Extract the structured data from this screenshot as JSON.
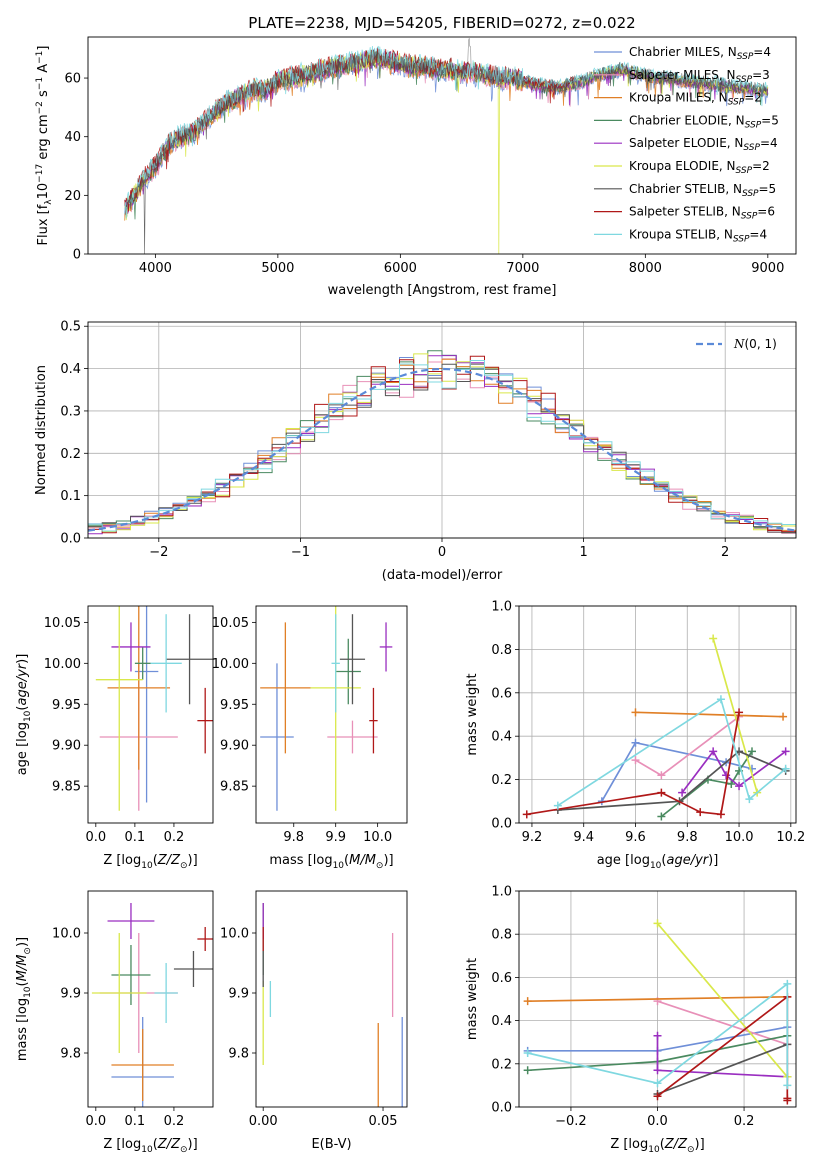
{
  "title": "PLATE=2238, MJD=54205, FIBERID=0272, z=0.022",
  "models": [
    {
      "name": "Chabrier MILES",
      "nssp": "4",
      "color": "#6f8fd8"
    },
    {
      "name": "Salpeter MILES",
      "nssp": "3",
      "color": "#e890b8"
    },
    {
      "name": "Kroupa MILES",
      "nssp": "2",
      "color": "#e07f26"
    },
    {
      "name": "Chabrier ELODIE",
      "nssp": "5",
      "color": "#4a8a60"
    },
    {
      "name": "Salpeter ELODIE",
      "nssp": "4",
      "color": "#9a2ec0"
    },
    {
      "name": "Kroupa ELODIE",
      "nssp": "2",
      "color": "#d9e84a"
    },
    {
      "name": "Chabrier STELIB",
      "nssp": "5",
      "color": "#555555"
    },
    {
      "name": "Salpeter STELIB",
      "nssp": "6",
      "color": "#b01818"
    },
    {
      "name": "Kroupa STELIB",
      "nssp": "4",
      "color": "#7fd8e0"
    }
  ],
  "nssp_prefix": "N",
  "nssp_sub": "SSP",
  "chart_data": [
    {
      "type": "line",
      "title": "PLATE=2238, MJD=54205, FIBERID=0272, z=0.022",
      "xlabel": "wavelength [Angstrom, rest frame]",
      "ylabel": "Flux [f_λ 10^-17 erg cm^-2 s^-1 A^-1]",
      "xlim": [
        3450,
        9230
      ],
      "ylim": [
        0,
        74
      ],
      "xticks": [
        4000,
        5000,
        6000,
        7000,
        8000,
        9000
      ],
      "yticks": [
        0,
        20,
        40,
        60
      ],
      "spectrum_envelope": {
        "x": [
          3750,
          3800,
          3900,
          4000,
          4100,
          4200,
          4300,
          4400,
          4500,
          4600,
          4700,
          4800,
          4900,
          5000,
          5100,
          5200,
          5300,
          5400,
          5500,
          5600,
          5700,
          5800,
          5900,
          6000,
          6100,
          6200,
          6300,
          6400,
          6500,
          6600,
          6700,
          6800,
          6900,
          7000,
          7100,
          7200,
          7300,
          7400,
          7500,
          7600,
          7700,
          7800,
          7900,
          8000,
          8100,
          8200,
          8300,
          8400,
          8500,
          8600,
          8700,
          8800,
          8900,
          9000
        ],
        "y": [
          15,
          18,
          25,
          30,
          37,
          40,
          41,
          45,
          49,
          52,
          54,
          56,
          56,
          59,
          60,
          61,
          62,
          63,
          64,
          65,
          66,
          67,
          66,
          65,
          64,
          64,
          63,
          63,
          62,
          62,
          61,
          60,
          60,
          59,
          58,
          57,
          57,
          58,
          59,
          61,
          62,
          63,
          62,
          61,
          60,
          60,
          59,
          59,
          58,
          58,
          57,
          57,
          56,
          56
        ]
      },
      "legend": "upper right"
    },
    {
      "type": "bar",
      "subtype": "step-histogram",
      "xlabel": "(data-model)/error",
      "ylabel": "Normed distribution",
      "xlim": [
        -2.5,
        2.5
      ],
      "ylim": [
        0,
        0.51
      ],
      "xticks": [
        -2,
        -1,
        0,
        1,
        2
      ],
      "yticks": [
        0.0,
        0.1,
        0.2,
        0.3,
        0.4,
        0.5
      ],
      "bin_width": 0.1,
      "reference_curve": {
        "name": "N(0,1)",
        "mean": 0,
        "sigma": 1
      },
      "grid": true,
      "legend": "upper right"
    },
    {
      "type": "scatter",
      "subtype": "errorbar",
      "xlabel": "Z [log10(Z/Z⊙)]",
      "ylabel": "age [log10(age/yr)]",
      "xlim": [
        -0.02,
        0.3
      ],
      "ylim": [
        9.805,
        10.07
      ],
      "xticks": [
        0.0,
        0.1,
        0.2
      ],
      "yticks": [
        9.85,
        9.9,
        9.95,
        10.0,
        10.05
      ],
      "points": [
        {
          "model": "Chabrier MILES",
          "x": 0.13,
          "y": 9.99,
          "xerr": 0.03,
          "yerr": 0.16
        },
        {
          "model": "Salpeter MILES",
          "x": 0.11,
          "y": 9.91,
          "xerr": 0.1,
          "yerr": 0.09
        },
        {
          "model": "Kroupa MILES",
          "x": 0.11,
          "y": 9.97,
          "xerr": 0.08,
          "yerr": 0.1
        },
        {
          "model": "Chabrier ELODIE",
          "x": 0.12,
          "y": 10.0,
          "xerr": 0.02,
          "yerr": 0.02
        },
        {
          "model": "Salpeter ELODIE",
          "x": 0.09,
          "y": 10.02,
          "xerr": 0.05,
          "yerr": 0.03
        },
        {
          "model": "Kroupa ELODIE",
          "x": 0.06,
          "y": 9.98,
          "xerr": 0.06,
          "yerr": 0.16
        },
        {
          "model": "Chabrier STELIB",
          "x": 0.24,
          "y": 10.005,
          "xerr": 0.06,
          "yerr": 0.055
        },
        {
          "model": "Salpeter STELIB",
          "x": 0.28,
          "y": 9.93,
          "xerr": 0.02,
          "yerr": 0.04
        },
        {
          "model": "Kroupa STELIB",
          "x": 0.18,
          "y": 10.0,
          "xerr": 0.04,
          "yerr": 0.06
        }
      ]
    },
    {
      "type": "scatter",
      "subtype": "errorbar",
      "xlabel": "mass [log10(M/M⊙)]",
      "ylabel": "",
      "xlim": [
        9.71,
        10.07
      ],
      "ylim": [
        9.805,
        10.07
      ],
      "xticks": [
        9.8,
        9.9,
        10.0
      ],
      "yticks": [
        9.85,
        9.9,
        9.95,
        10.0,
        10.05
      ],
      "points": [
        {
          "model": "Chabrier MILES",
          "x": 9.76,
          "y": 9.91,
          "xerr": 0.04,
          "yerr": 0.09
        },
        {
          "model": "Salpeter MILES",
          "x": 9.94,
          "y": 9.91,
          "xerr": 0.06,
          "yerr": 0.02
        },
        {
          "model": "Kroupa MILES",
          "x": 9.78,
          "y": 9.97,
          "xerr": 0.06,
          "yerr": 0.08
        },
        {
          "model": "Chabrier ELODIE",
          "x": 9.93,
          "y": 9.99,
          "xerr": 0.03,
          "yerr": 0.04
        },
        {
          "model": "Salpeter ELODIE",
          "x": 10.02,
          "y": 10.02,
          "xerr": 0.015,
          "yerr": 0.03
        },
        {
          "model": "Kroupa ELODIE",
          "x": 9.9,
          "y": 9.97,
          "xerr": 0.06,
          "yerr": 0.15
        },
        {
          "model": "Chabrier STELIB",
          "x": 9.94,
          "y": 10.005,
          "xerr": 0.03,
          "yerr": 0.055
        },
        {
          "model": "Salpeter STELIB",
          "x": 9.99,
          "y": 9.93,
          "xerr": 0.01,
          "yerr": 0.04
        },
        {
          "model": "Kroupa STELIB",
          "x": 9.9,
          "y": 10.0,
          "xerr": 0.01,
          "yerr": 0.06
        }
      ]
    },
    {
      "type": "line",
      "xlabel": "age [log10(age/yr)]",
      "ylabel": "mass weight",
      "xlim": [
        9.15,
        10.22
      ],
      "ylim": [
        0,
        1
      ],
      "xticks": [
        9.2,
        9.4,
        9.6,
        9.8,
        10.0,
        10.2
      ],
      "yticks": [
        0.0,
        0.2,
        0.4,
        0.6,
        0.8,
        1.0
      ],
      "grid": true,
      "series": [
        {
          "model": "Chabrier MILES",
          "x": [
            9.47,
            9.6,
            9.95,
            10.05
          ],
          "y": [
            0.1,
            0.37,
            0.28,
            0.25
          ]
        },
        {
          "model": "Salpeter MILES",
          "x": [
            9.6,
            9.7,
            10.0
          ],
          "y": [
            0.29,
            0.22,
            0.49
          ]
        },
        {
          "model": "Kroupa MILES",
          "x": [
            9.6,
            10.17
          ],
          "y": [
            0.51,
            0.49
          ]
        },
        {
          "model": "Chabrier ELODIE",
          "x": [
            9.7,
            9.88,
            9.97,
            10.0,
            10.05
          ],
          "y": [
            0.03,
            0.2,
            0.18,
            0.24,
            0.33
          ]
        },
        {
          "model": "Salpeter ELODIE",
          "x": [
            9.78,
            9.9,
            9.95,
            10.0,
            10.18
          ],
          "y": [
            0.14,
            0.33,
            0.22,
            0.17,
            0.33
          ]
        },
        {
          "model": "Kroupa ELODIE",
          "x": [
            9.9,
            10.07
          ],
          "y": [
            0.85,
            0.14
          ]
        },
        {
          "model": "Chabrier STELIB",
          "x": [
            9.3,
            9.77,
            10.0,
            10.18
          ],
          "y": [
            0.06,
            0.1,
            0.33,
            0.24
          ]
        },
        {
          "model": "Salpeter STELIB",
          "x": [
            9.18,
            9.7,
            9.85,
            9.93,
            10.0
          ],
          "y": [
            0.04,
            0.14,
            0.05,
            0.04,
            0.51
          ]
        },
        {
          "model": "Kroupa STELIB",
          "x": [
            9.3,
            9.93,
            10.04,
            10.18
          ],
          "y": [
            0.08,
            0.57,
            0.11,
            0.25
          ]
        }
      ]
    },
    {
      "type": "scatter",
      "subtype": "errorbar",
      "xlabel": "Z [log10(Z/Z⊙)]",
      "ylabel": "mass [log10(M/M⊙)]",
      "xlim": [
        -0.02,
        0.3
      ],
      "ylim": [
        9.71,
        10.07
      ],
      "xticks": [
        0.0,
        0.1,
        0.2
      ],
      "yticks": [
        9.8,
        9.9,
        10.0
      ],
      "points": [
        {
          "model": "Chabrier MILES",
          "x": 0.12,
          "y": 9.76,
          "xerr": 0.08,
          "yerr": 0.1
        },
        {
          "model": "Salpeter MILES",
          "x": 0.11,
          "y": 9.9,
          "xerr": 0.1,
          "yerr": 0.1
        },
        {
          "model": "Kroupa MILES",
          "x": 0.12,
          "y": 9.78,
          "xerr": 0.08,
          "yerr": 0.06
        },
        {
          "model": "Chabrier ELODIE",
          "x": 0.09,
          "y": 9.93,
          "xerr": 0.05,
          "yerr": 0.05
        },
        {
          "model": "Salpeter ELODIE",
          "x": 0.09,
          "y": 10.02,
          "xerr": 0.06,
          "yerr": 0.03
        },
        {
          "model": "Kroupa ELODIE",
          "x": 0.06,
          "y": 9.9,
          "xerr": 0.07,
          "yerr": 0.1
        },
        {
          "model": "Chabrier STELIB",
          "x": 0.25,
          "y": 9.94,
          "xerr": 0.05,
          "yerr": 0.03
        },
        {
          "model": "Salpeter STELIB",
          "x": 0.28,
          "y": 9.99,
          "xerr": 0.02,
          "yerr": 0.02
        },
        {
          "model": "Kroupa STELIB",
          "x": 0.18,
          "y": 9.9,
          "xerr": 0.03,
          "yerr": 0.05
        }
      ]
    },
    {
      "type": "scatter",
      "subtype": "errorbar",
      "xlabel": "E(B-V)",
      "ylabel": "",
      "xlim": [
        -0.003,
        0.06
      ],
      "ylim": [
        9.71,
        10.07
      ],
      "xticks": [
        0.0,
        0.05
      ],
      "yticks": [
        9.8,
        9.9,
        10.0
      ],
      "points": [
        {
          "model": "Chabrier MILES",
          "x": 0.058,
          "y": 9.78,
          "xerr": 0,
          "yerr": 0.08
        },
        {
          "model": "Salpeter MILES",
          "x": 0.054,
          "y": 9.93,
          "xerr": 0,
          "yerr": 0.07
        },
        {
          "model": "Kroupa MILES",
          "x": 0.048,
          "y": 9.76,
          "xerr": 0,
          "yerr": 0.09
        },
        {
          "model": "Chabrier ELODIE",
          "x": 0.0,
          "y": 9.99,
          "xerr": 0,
          "yerr": 0.06
        },
        {
          "model": "Salpeter ELODIE",
          "x": 0.0,
          "y": 10.02,
          "xerr": 0,
          "yerr": 0.03
        },
        {
          "model": "Kroupa ELODIE",
          "x": 0.0,
          "y": 9.85,
          "xerr": 0,
          "yerr": 0.07
        },
        {
          "model": "Chabrier STELIB",
          "x": 0.0,
          "y": 9.94,
          "xerr": 0,
          "yerr": 0.03
        },
        {
          "model": "Salpeter STELIB",
          "x": 0.0,
          "y": 9.99,
          "xerr": 0,
          "yerr": 0.02
        },
        {
          "model": "Kroupa STELIB",
          "x": 0.003,
          "y": 9.89,
          "xerr": 0,
          "yerr": 0.03
        }
      ]
    },
    {
      "type": "line",
      "xlabel": "Z [log10(Z/Z⊙)]",
      "ylabel": "mass weight",
      "xlim": [
        -0.32,
        0.32
      ],
      "ylim": [
        0,
        1
      ],
      "xticks": [
        -0.2,
        0.0,
        0.2
      ],
      "yticks": [
        0.0,
        0.2,
        0.4,
        0.6,
        0.8,
        1.0
      ],
      "grid": true,
      "series": [
        {
          "model": "Chabrier MILES",
          "x": [
            -0.3,
            0.0,
            0.3
          ],
          "y": [
            0.26,
            0.26,
            0.37
          ]
        },
        {
          "model": "Salpeter MILES",
          "x": [
            0.0,
            0.3
          ],
          "y": [
            0.49,
            0.29
          ]
        },
        {
          "model": "Kroupa MILES",
          "x": [
            -0.3,
            0.3
          ],
          "y": [
            0.49,
            0.51
          ]
        },
        {
          "model": "Chabrier ELODIE",
          "x": [
            -0.3,
            0.0,
            0.3
          ],
          "y": [
            0.17,
            0.21,
            0.33
          ]
        },
        {
          "model": "Salpeter ELODIE",
          "x": [
            0.0,
            0.0,
            0.3
          ],
          "y": [
            0.33,
            0.17,
            0.14
          ]
        },
        {
          "model": "Kroupa ELODIE",
          "x": [
            0.0,
            0.3
          ],
          "y": [
            0.85,
            0.14
          ]
        },
        {
          "model": "Chabrier STELIB",
          "x": [
            0.0,
            0.3
          ],
          "y": [
            0.06,
            0.29
          ]
        },
        {
          "model": "Salpeter STELIB",
          "x": [
            0.0,
            0.3,
            0.3,
            0.3
          ],
          "y": [
            0.05,
            0.51,
            0.04,
            0.03
          ]
        },
        {
          "model": "Kroupa STELIB",
          "x": [
            -0.3,
            0.0,
            0.3,
            0.3
          ],
          "y": [
            0.25,
            0.11,
            0.57,
            0.1
          ]
        }
      ]
    }
  ]
}
